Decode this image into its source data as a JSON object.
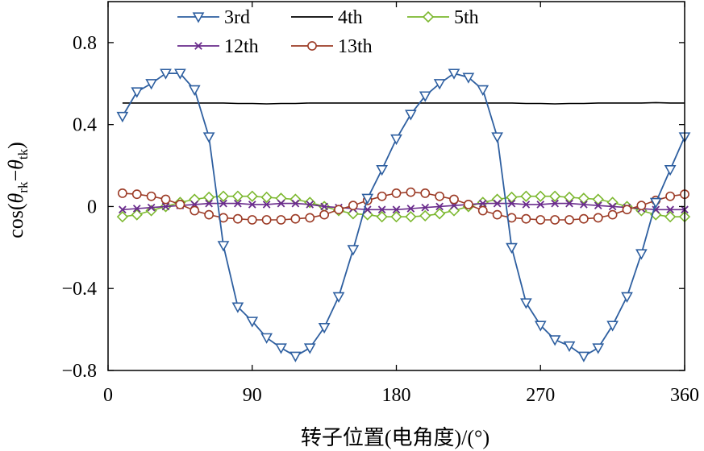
{
  "chart_data": {
    "type": "line",
    "title": "",
    "xlabel": "转子位置(电角度)/(°)",
    "ylabel": "cos(θrk−θtk)",
    "ylabel_parts": {
      "prefix": "cos(",
      "theta1": "θ",
      "sub1": "rk",
      "minus": "−",
      "theta2": "θ",
      "sub2": "tk",
      "suffix": ")"
    },
    "xlim": [
      0,
      360
    ],
    "ylim": [
      -0.8,
      1.0
    ],
    "xticks": [
      0,
      90,
      180,
      270,
      360
    ],
    "xtick_labels": [
      "0",
      "90",
      "180",
      "270",
      "360"
    ],
    "yticks": [
      -0.8,
      -0.4,
      0,
      0.4,
      0.8
    ],
    "ytick_labels": [
      "−0.8",
      "−0.4",
      "0",
      "0.4",
      "0.8"
    ],
    "grid": false,
    "legend_position": "top",
    "x": [
      9,
      18,
      27,
      36,
      45,
      54,
      63,
      72,
      81,
      90,
      99,
      108,
      117,
      126,
      135,
      144,
      153,
      162,
      171,
      180,
      189,
      198,
      207,
      216,
      225,
      234,
      243,
      252,
      261,
      270,
      279,
      288,
      297,
      306,
      315,
      324,
      333,
      342,
      351,
      360
    ],
    "series": [
      {
        "name": "3rd",
        "color": "#2e5fa0",
        "marker": "triangle-down",
        "values": [
          0.44,
          0.56,
          0.6,
          0.65,
          0.65,
          0.57,
          0.34,
          -0.19,
          -0.49,
          -0.56,
          -0.64,
          -0.69,
          -0.73,
          -0.69,
          -0.59,
          -0.44,
          -0.21,
          0.04,
          0.18,
          0.33,
          0.45,
          0.54,
          0.6,
          0.65,
          0.63,
          0.57,
          0.34,
          -0.2,
          -0.47,
          -0.58,
          -0.65,
          -0.68,
          -0.73,
          -0.69,
          -0.58,
          -0.44,
          -0.23,
          0.02,
          0.18,
          0.34
        ]
      },
      {
        "name": "4th",
        "color": "#000000",
        "marker": "none",
        "values": [
          0.505,
          0.505,
          0.505,
          0.505,
          0.505,
          0.505,
          0.505,
          0.505,
          0.503,
          0.503,
          0.501,
          0.503,
          0.503,
          0.505,
          0.505,
          0.505,
          0.505,
          0.505,
          0.505,
          0.505,
          0.505,
          0.505,
          0.505,
          0.505,
          0.505,
          0.505,
          0.505,
          0.505,
          0.503,
          0.503,
          0.501,
          0.503,
          0.503,
          0.505,
          0.505,
          0.505,
          0.505,
          0.507,
          0.505,
          0.505
        ]
      },
      {
        "name": "5th",
        "color": "#7cb82f",
        "marker": "diamond",
        "values": [
          -0.05,
          -0.04,
          -0.02,
          0.0,
          0.02,
          0.035,
          0.045,
          0.05,
          0.05,
          0.05,
          0.045,
          0.04,
          0.035,
          0.02,
          0.0,
          -0.02,
          -0.035,
          -0.04,
          -0.05,
          -0.05,
          -0.05,
          -0.045,
          -0.035,
          -0.02,
          0.0,
          0.02,
          0.035,
          0.045,
          0.05,
          0.05,
          0.05,
          0.045,
          0.04,
          0.035,
          0.02,
          0.0,
          -0.02,
          -0.04,
          -0.05,
          -0.05
        ]
      },
      {
        "name": "12th",
        "color": "#6a2c8c",
        "marker": "x",
        "values": [
          -0.015,
          -0.01,
          -0.005,
          0.0,
          0.005,
          0.01,
          0.015,
          0.015,
          0.015,
          0.01,
          0.01,
          0.015,
          0.015,
          0.01,
          0.0,
          -0.005,
          -0.01,
          -0.015,
          -0.015,
          -0.015,
          -0.01,
          -0.005,
          0.0,
          0.005,
          0.01,
          0.015,
          0.015,
          0.015,
          0.01,
          0.01,
          0.015,
          0.015,
          0.01,
          0.005,
          0.0,
          -0.005,
          -0.01,
          -0.015,
          -0.015,
          -0.015
        ]
      },
      {
        "name": "13th",
        "color": "#9c3b26",
        "marker": "circle",
        "values": [
          0.065,
          0.06,
          0.05,
          0.035,
          0.01,
          -0.02,
          -0.04,
          -0.055,
          -0.06,
          -0.065,
          -0.065,
          -0.065,
          -0.06,
          -0.055,
          -0.04,
          -0.015,
          0.005,
          0.03,
          0.05,
          0.065,
          0.07,
          0.065,
          0.05,
          0.035,
          0.01,
          -0.02,
          -0.04,
          -0.055,
          -0.06,
          -0.065,
          -0.065,
          -0.065,
          -0.06,
          -0.055,
          -0.04,
          -0.015,
          0.005,
          0.03,
          0.05,
          0.06
        ]
      }
    ]
  }
}
